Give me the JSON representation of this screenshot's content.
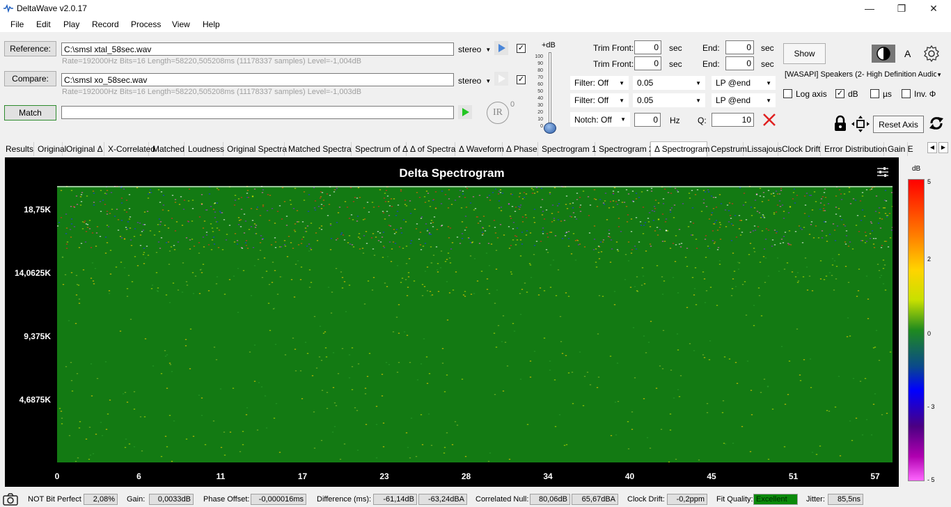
{
  "window": {
    "title": "DeltaWave v2.0.17"
  },
  "menu": [
    "File",
    "Edit",
    "Play",
    "Record",
    "Process",
    "View",
    "Help"
  ],
  "reference": {
    "button": "Reference:",
    "path": "C:\\smsl xtal_58sec.wav",
    "channel": "stereo",
    "info": "Rate=192000Hz Bits=16 Length=58220,505208ms (11178337 samples) Level=-1,004dB"
  },
  "compare": {
    "button": "Compare:",
    "path": "C:\\smsl xo_58sec.wav",
    "channel": "stereo",
    "info": "Rate=192000Hz Bits=16 Length=58220,505208ms (11178337 samples) Level=-1,003dB"
  },
  "match": {
    "button": "Match",
    "value": ""
  },
  "ir": {
    "label": "IR",
    "sup": "0"
  },
  "level_slider": {
    "label": "+dB",
    "ticks": [
      "100",
      "90",
      "80",
      "70",
      "60",
      "50",
      "40",
      "30",
      "20",
      "10",
      "0"
    ],
    "value_fraction": 0.0
  },
  "trim": {
    "front_label": "Trim Front:",
    "end_label": "End:",
    "unit": "sec",
    "rows": [
      {
        "front": "0",
        "end": "0"
      },
      {
        "front": "0",
        "end": "0"
      }
    ]
  },
  "filters": [
    {
      "filter": "Filter: Off",
      "value": "0.05",
      "lp": "LP @end"
    },
    {
      "filter": "Filter: Off",
      "value": "0.05",
      "lp": "LP @end"
    }
  ],
  "notch": {
    "label": "Notch: Off",
    "value": "0",
    "unit": "Hz",
    "q_label": "Q:",
    "q_value": "10"
  },
  "show_button": "Show",
  "device": "[WASAPI] Speakers (2- High Definition Audio",
  "font_label": "A",
  "options": [
    {
      "label": "Log axis",
      "checked": false
    },
    {
      "label": "dB",
      "checked": true
    },
    {
      "label": "µs",
      "checked": false
    },
    {
      "label": "Inv. Φ",
      "checked": false
    }
  ],
  "reset_axis": "Reset Axis",
  "tabs": [
    "Results",
    "Original",
    "Original Δ",
    "X-Correlated",
    "Matched",
    "Loudness",
    "Original Spectra",
    "Matched Spectra",
    "Spectrum of Δ",
    "Δ of Spectra",
    "Δ Waveform",
    "Δ Phase",
    "Spectrogram 1",
    "Spectrogram 2",
    "Δ Spectrogram",
    "Cepstrum",
    "Lissajous",
    "Clock Drift",
    "Error Distribution",
    "Gain E"
  ],
  "active_tab": "Δ Spectrogram",
  "chart_data": {
    "type": "heatmap",
    "title": "Delta Spectrogram",
    "y_ticks": [
      "18,75K",
      "14,0625K",
      "9,375K",
      "4,6875K"
    ],
    "x_ticks": [
      "0",
      "6",
      "11",
      "17",
      "23",
      "28",
      "34",
      "40",
      "45",
      "51",
      "57"
    ],
    "colorbar_label": "dB",
    "colorbar_ticks": [
      "5",
      "2",
      "0",
      "- 3",
      "- 5"
    ],
    "colorbar_range": [
      -5,
      5
    ]
  },
  "status": {
    "bit_perfect": "NOT Bit Perfect",
    "bit_perfect_value": "2,08%",
    "gain_label": "Gain:",
    "gain": "0,0033dB",
    "phase_label": "Phase Offset:",
    "phase": "-0,000016ms",
    "diff_label": "Difference (ms):",
    "diff_db": "-61,14dB",
    "diff_dba": "-63,24dBA",
    "null_label": "Correlated Null:",
    "null_db": "80,06dB",
    "null_dba": "65,67dBA",
    "drift_label": "Clock Drift:",
    "drift": "-0,2ppm",
    "fit_label": "Fit Quality:",
    "fit": "Excellent",
    "jitter_label": "Jitter:",
    "jitter": "85,5ns"
  },
  "colors": {
    "fit_quality_bg": "#0a8a0a",
    "spectro_base": "#137a13"
  }
}
